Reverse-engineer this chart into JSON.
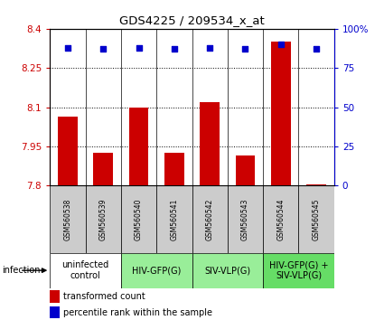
{
  "title": "GDS4225 / 209534_x_at",
  "samples": [
    "GSM560538",
    "GSM560539",
    "GSM560540",
    "GSM560541",
    "GSM560542",
    "GSM560543",
    "GSM560544",
    "GSM560545"
  ],
  "bar_values": [
    8.065,
    7.925,
    8.1,
    7.925,
    8.12,
    7.915,
    8.35,
    7.805
  ],
  "percentile_values": [
    88,
    87,
    88,
    87,
    88,
    87,
    90,
    87
  ],
  "ylim_left": [
    7.8,
    8.4
  ],
  "ylim_right": [
    0,
    100
  ],
  "yticks_left": [
    7.8,
    7.95,
    8.1,
    8.25,
    8.4
  ],
  "yticks_right": [
    0,
    25,
    50,
    75,
    100
  ],
  "bar_color": "#cc0000",
  "dot_color": "#0000cc",
  "groups": [
    {
      "label": "uninfected\ncontrol",
      "start": 0,
      "end": 2,
      "color": "#ffffff"
    },
    {
      "label": "HIV-GFP(G)",
      "start": 2,
      "end": 4,
      "color": "#99ee99"
    },
    {
      "label": "SIV-VLP(G)",
      "start": 4,
      "end": 6,
      "color": "#99ee99"
    },
    {
      "label": "HIV-GFP(G) +\nSIV-VLP(G)",
      "start": 6,
      "end": 8,
      "color": "#66dd66"
    }
  ],
  "infection_label": "infection",
  "legend_bar_label": "transformed count",
  "legend_dot_label": "percentile rank within the sample",
  "sample_box_color": "#cccccc"
}
